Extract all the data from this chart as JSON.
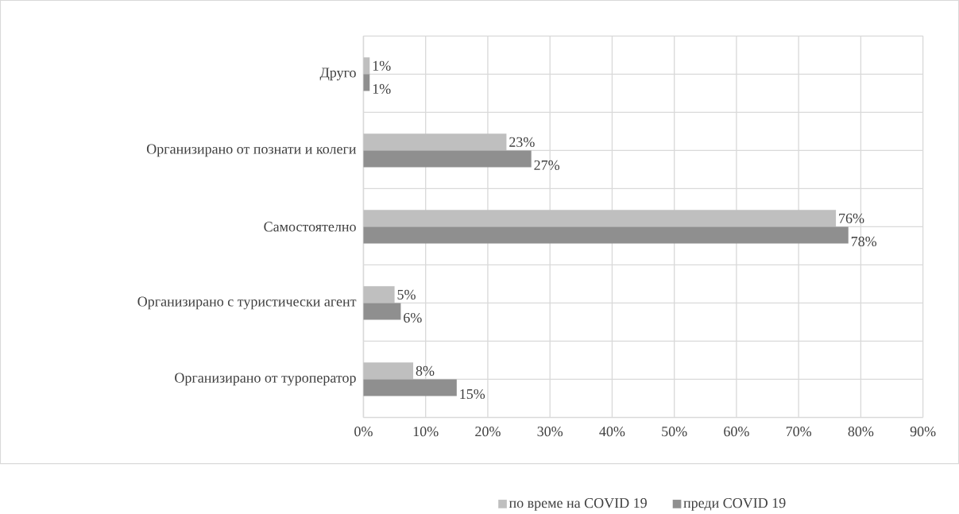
{
  "chart_data": {
    "type": "bar",
    "orientation": "horizontal",
    "categories": [
      "Друго",
      "Организирано от познати и колеги",
      "Самостоятелно",
      "Организирано с туристически агент",
      "Организирано от туроператор"
    ],
    "series": [
      {
        "name": "по време на COVID 19",
        "color": "#bfbfbf",
        "values": [
          1,
          23,
          76,
          5,
          8
        ],
        "value_labels": [
          "1%",
          "23%",
          "76%",
          "5%",
          "8%"
        ]
      },
      {
        "name": "преди COVID 19",
        "color": "#8f8f8f",
        "values": [
          1,
          27,
          78,
          6,
          15
        ],
        "value_labels": [
          "1%",
          "27%",
          "78%",
          "6%",
          "15%"
        ]
      }
    ],
    "xlim": [
      0,
      90
    ],
    "xticks": [
      {
        "value": 0,
        "label": "0%"
      },
      {
        "value": 10,
        "label": "10%"
      },
      {
        "value": 20,
        "label": "20%"
      },
      {
        "value": 30,
        "label": "30%"
      },
      {
        "value": 40,
        "label": "40%"
      },
      {
        "value": 50,
        "label": "50%"
      },
      {
        "value": 60,
        "label": "60%"
      },
      {
        "value": 70,
        "label": "70%"
      },
      {
        "value": 80,
        "label": "80%"
      },
      {
        "value": 90,
        "label": "90%"
      }
    ],
    "grid": true,
    "legend": "bottom"
  }
}
